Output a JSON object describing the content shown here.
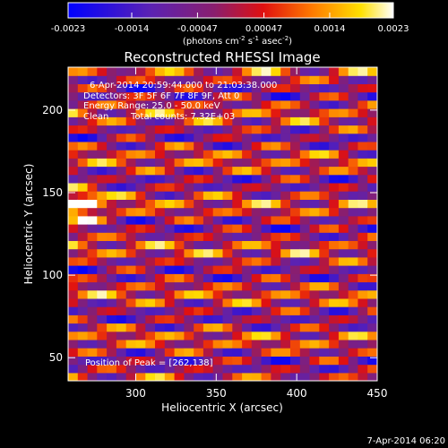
{
  "chart_data": {
    "type": "heatmap",
    "title": "Reconstructed RHESSI Image",
    "xlabel": "Heliocentric X (arcsec)",
    "ylabel": "Heliocentric Y (arcsec)",
    "xlim": [
      258,
      450
    ],
    "ylim": [
      36,
      226
    ],
    "x_ticks": [
      300,
      350,
      400,
      450
    ],
    "y_ticks": [
      50,
      100,
      150,
      200
    ],
    "colorbar": {
      "colormap": "blue-purple-red-orange-yellow-white",
      "range": [
        -0.0023,
        0.0023
      ],
      "tick_labels": [
        "-0.0023",
        "-0.0014",
        "-0.00047",
        "0.00047",
        "0.0014",
        "0.0023"
      ],
      "units_label": "(photons cm",
      "units_exp1": "-2",
      "units_mid": " s",
      "units_exp2": "-1",
      "units_mid2": " asec",
      "units_exp3": "-2",
      "units_end": ")"
    },
    "annotations": {
      "time_range": "6-Apr-2014 20:59:44.000 to 21:03:38.000",
      "detectors": "Detectors: 3F 5F 6F 7F 8F 9F, Att 0",
      "energy": "Energy Range: 25.0 - 50.0 keV",
      "clean_label": "Clean",
      "counts": "Total counts: 7.32E+03",
      "peak": "Position of Peak = [262,138]"
    },
    "peak": [
      262,
      138
    ],
    "stripe_slope": 0.2
  },
  "footer": {
    "date": "7-Apr-2014 06:20"
  }
}
